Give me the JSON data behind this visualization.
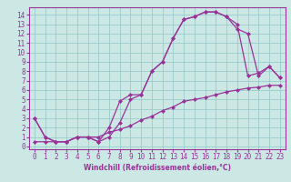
{
  "xlabel": "Windchill (Refroidissement éolien,°C)",
  "bg_color": "#cce8e4",
  "line_color": "#993399",
  "grid_color": "#99cccc",
  "xlim": [
    -0.5,
    23.5
  ],
  "ylim": [
    -0.3,
    14.8
  ],
  "xticks": [
    0,
    1,
    2,
    3,
    4,
    5,
    6,
    7,
    8,
    9,
    10,
    11,
    12,
    13,
    14,
    15,
    16,
    17,
    18,
    19,
    20,
    21,
    22,
    23
  ],
  "yticks": [
    0,
    1,
    2,
    3,
    4,
    5,
    6,
    7,
    8,
    9,
    10,
    11,
    12,
    13,
    14
  ],
  "line1_x": [
    0,
    1,
    2,
    3,
    4,
    5,
    6,
    7,
    8,
    9,
    10,
    11,
    12,
    13,
    14,
    15,
    16,
    17,
    18,
    19,
    20,
    21,
    22,
    23
  ],
  "line1_y": [
    3.0,
    1.0,
    0.5,
    0.5,
    1.0,
    1.0,
    0.5,
    1.0,
    2.5,
    5.0,
    5.5,
    8.0,
    9.0,
    11.5,
    13.5,
    13.8,
    14.3,
    14.3,
    13.8,
    13.0,
    7.5,
    7.8,
    8.5,
    7.3
  ],
  "line2_x": [
    0,
    1,
    2,
    3,
    4,
    5,
    6,
    7,
    8,
    9,
    10,
    11,
    12,
    13,
    14,
    15,
    16,
    17,
    18,
    19,
    20,
    21,
    22,
    23
  ],
  "line2_y": [
    3.0,
    1.0,
    0.5,
    0.5,
    1.0,
    1.0,
    0.5,
    2.0,
    4.8,
    5.5,
    5.5,
    8.0,
    9.0,
    11.5,
    13.5,
    13.8,
    14.3,
    14.3,
    13.8,
    12.5,
    12.0,
    7.5,
    8.5,
    7.3
  ],
  "line3_x": [
    0,
    1,
    2,
    3,
    4,
    5,
    6,
    7,
    8,
    9,
    10,
    11,
    12,
    13,
    14,
    15,
    16,
    17,
    18,
    19,
    20,
    21,
    22,
    23
  ],
  "line3_y": [
    0.5,
    0.5,
    0.5,
    0.5,
    1.0,
    1.0,
    1.0,
    1.5,
    1.8,
    2.2,
    2.8,
    3.2,
    3.8,
    4.2,
    4.8,
    5.0,
    5.2,
    5.5,
    5.8,
    6.0,
    6.2,
    6.3,
    6.5,
    6.5
  ],
  "marker": "D",
  "markersize": 2.0,
  "linewidth": 0.9,
  "tick_fontsize": 5.5,
  "xlabel_fontsize": 5.5
}
